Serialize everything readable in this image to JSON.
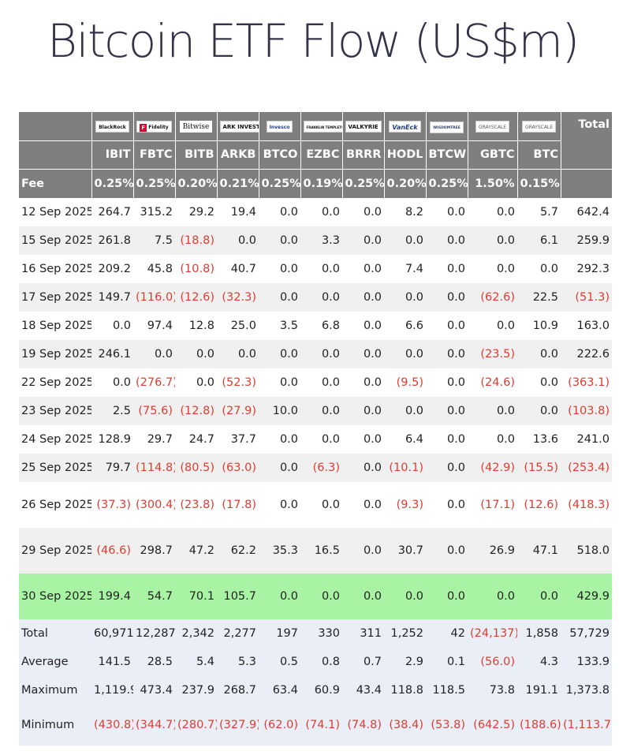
{
  "title": "Bitcoin ETF Flow (US$m)",
  "header": {
    "logos": [
      {
        "name": "blackrock-logo",
        "text": "BlackRock"
      },
      {
        "name": "fidelity-logo",
        "text": "Fidelity"
      },
      {
        "name": "bitwise-logo",
        "text": "Bitwise"
      },
      {
        "name": "ark-invest-logo",
        "text": "ARK INVEST"
      },
      {
        "name": "invesco-logo",
        "text": "Invesco"
      },
      {
        "name": "franklin-templeton-logo",
        "text": "FRANKLIN TEMPLETON"
      },
      {
        "name": "valkyrie-logo",
        "text": "VALKYRIE"
      },
      {
        "name": "vaneck-logo",
        "text": "VanEck"
      },
      {
        "name": "wisdomtree-logo",
        "text": "WISDOMTREE"
      },
      {
        "name": "grayscale-logo",
        "text": "GRAYSCALE"
      },
      {
        "name": "grayscale-mini-logo",
        "text": "GRAYSCALE"
      }
    ],
    "total_label": "Total",
    "tickers": [
      "IBIT",
      "FBTC",
      "BITB",
      "ARKB",
      "BTCO",
      "EZBC",
      "BRRR",
      "HODL",
      "BTCW",
      "GBTC",
      "BTC"
    ],
    "fee_label": "Fee",
    "fees": [
      "0.25%",
      "0.25%",
      "0.20%",
      "0.21%",
      "0.25%",
      "0.19%",
      "0.25%",
      "0.20%",
      "0.25%",
      "1.50%",
      "0.15%"
    ]
  },
  "rows": [
    {
      "date": "12 Sep 2025",
      "values": [
        "264.7",
        "315.2",
        "29.2",
        "19.4",
        "0.0",
        "0.0",
        "0.0",
        "8.2",
        "0.0",
        "0.0",
        "5.7"
      ],
      "total": "642.4"
    },
    {
      "date": "15 Sep 2025",
      "values": [
        "261.8",
        "7.5",
        "(18.8)",
        "0.0",
        "0.0",
        "3.3",
        "0.0",
        "0.0",
        "0.0",
        "0.0",
        "6.1"
      ],
      "total": "259.9"
    },
    {
      "date": "16 Sep 2025",
      "values": [
        "209.2",
        "45.8",
        "(10.8)",
        "40.7",
        "0.0",
        "0.0",
        "0.0",
        "7.4",
        "0.0",
        "0.0",
        "0.0"
      ],
      "total": "292.3"
    },
    {
      "date": "17 Sep 2025",
      "values": [
        "149.7",
        "(116.0)",
        "(12.6)",
        "(32.3)",
        "0.0",
        "0.0",
        "0.0",
        "0.0",
        "0.0",
        "(62.6)",
        "22.5"
      ],
      "total": "(51.3)"
    },
    {
      "date": "18 Sep 2025",
      "values": [
        "0.0",
        "97.4",
        "12.8",
        "25.0",
        "3.5",
        "6.8",
        "0.0",
        "6.6",
        "0.0",
        "0.0",
        "10.9"
      ],
      "total": "163.0"
    },
    {
      "date": "19 Sep 2025",
      "values": [
        "246.1",
        "0.0",
        "0.0",
        "0.0",
        "0.0",
        "0.0",
        "0.0",
        "0.0",
        "0.0",
        "(23.5)",
        "0.0"
      ],
      "total": "222.6"
    },
    {
      "date": "22 Sep 2025",
      "values": [
        "0.0",
        "(276.7)",
        "0.0",
        "(52.3)",
        "0.0",
        "0.0",
        "0.0",
        "(9.5)",
        "0.0",
        "(24.6)",
        "0.0"
      ],
      "total": "(363.1)"
    },
    {
      "date": "23 Sep 2025",
      "values": [
        "2.5",
        "(75.6)",
        "(12.8)",
        "(27.9)",
        "10.0",
        "0.0",
        "0.0",
        "0.0",
        "0.0",
        "0.0",
        "0.0"
      ],
      "total": "(103.8)"
    },
    {
      "date": "24 Sep 2025",
      "values": [
        "128.9",
        "29.7",
        "24.7",
        "37.7",
        "0.0",
        "0.0",
        "0.0",
        "6.4",
        "0.0",
        "0.0",
        "13.6"
      ],
      "total": "241.0"
    },
    {
      "date": "25 Sep 2025",
      "values": [
        "79.7",
        "(114.8)",
        "(80.5)",
        "(63.0)",
        "0.0",
        "(6.3)",
        "0.0",
        "(10.1)",
        "0.0",
        "(42.9)",
        "(15.5)"
      ],
      "total": "(253.4)"
    },
    {
      "date": "26 Sep 2025",
      "values": [
        "(37.3)",
        "(300.4)",
        "(23.8)",
        "(17.8)",
        "0.0",
        "0.0",
        "0.0",
        "(9.3)",
        "0.0",
        "(17.1)",
        "(12.6)"
      ],
      "total": "(418.3)"
    },
    {
      "date": "29 Sep 2025",
      "values": [
        "(46.6)",
        "298.7",
        "47.2",
        "62.2",
        "35.3",
        "16.5",
        "0.0",
        "30.7",
        "0.0",
        "26.9",
        "47.1"
      ],
      "total": "518.0"
    },
    {
      "date": "30 Sep 2025",
      "values": [
        "199.4",
        "54.7",
        "70.1",
        "105.7",
        "0.0",
        "0.0",
        "0.0",
        "0.0",
        "0.0",
        "0.0",
        "0.0"
      ],
      "total": "429.9"
    }
  ],
  "stats": [
    {
      "label": "Total",
      "values": [
        "60,971",
        "12,287",
        "2,342",
        "2,277",
        "197",
        "330",
        "311",
        "1,252",
        "42",
        "(24,137)",
        "1,858"
      ],
      "total": "57,729"
    },
    {
      "label": "Average",
      "values": [
        "141.5",
        "28.5",
        "5.4",
        "5.3",
        "0.5",
        "0.8",
        "0.7",
        "2.9",
        "0.1",
        "(56.0)",
        "4.3"
      ],
      "total": "133.9"
    },
    {
      "label": "Maximum",
      "values": [
        "1,119.9",
        "473.4",
        "237.9",
        "268.7",
        "63.4",
        "60.9",
        "43.4",
        "118.8",
        "118.5",
        "73.8",
        "191.1"
      ],
      "total": "1,373.8"
    },
    {
      "label": "Minimum",
      "values": [
        "(430.8)",
        "(344.7)",
        "(280.7)",
        "(327.9)",
        "(62.0)",
        "(74.1)",
        "(74.8)",
        "(38.4)",
        "(53.8)",
        "(642.5)",
        "(188.6)"
      ],
      "total": "(1,113.7)"
    }
  ],
  "colors": {
    "header_bg": "#7f7f7f",
    "row_alt_bg": "#f0f0f0",
    "highlight_row_bg": "#a9f4a4",
    "stats_bg": "#eaeef7",
    "negative_text": "#e03c31",
    "title_text": "#33334a"
  }
}
